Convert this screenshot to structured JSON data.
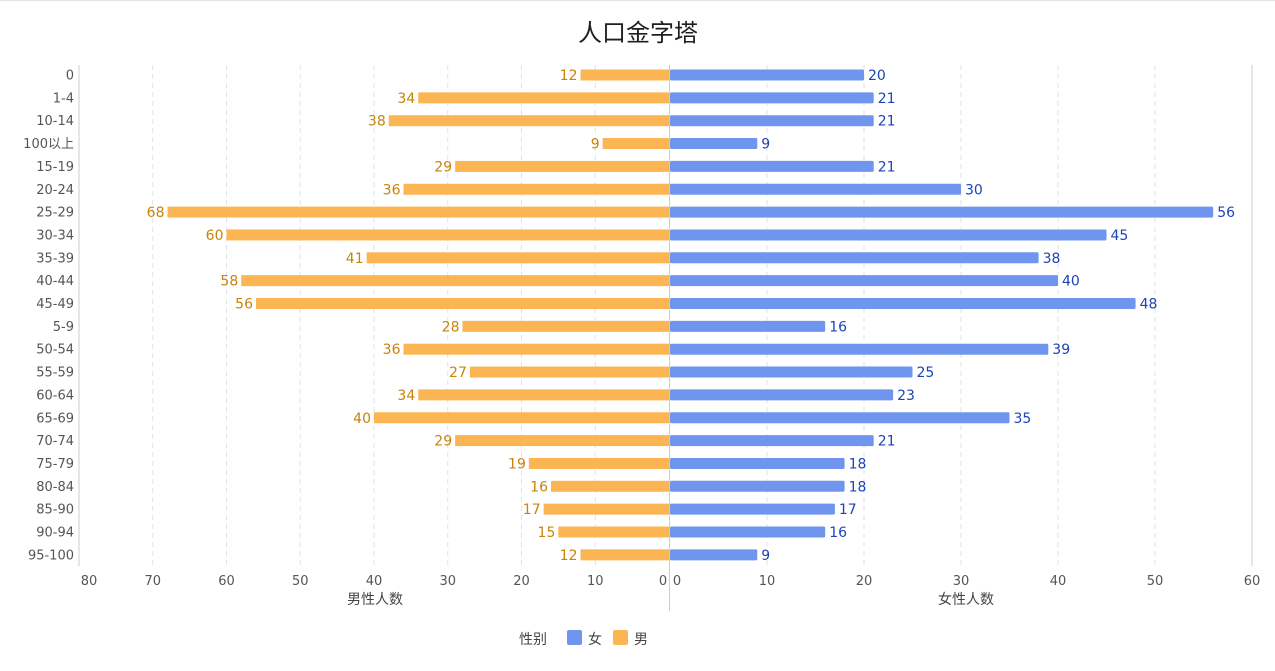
{
  "chart_data": {
    "type": "bar",
    "orientation": "horizontal",
    "layout": "population-pyramid",
    "title": "人口金字塔",
    "categories": [
      "0",
      "1-4",
      "10-14",
      "100以上",
      "15-19",
      "20-24",
      "25-29",
      "30-34",
      "35-39",
      "40-44",
      "45-49",
      "5-9",
      "50-54",
      "55-59",
      "60-64",
      "65-69",
      "70-74",
      "75-79",
      "80-84",
      "85-90",
      "90-94",
      "95-100"
    ],
    "series": [
      {
        "name": "男",
        "color": "#fbb553",
        "label_color": "#c8830a",
        "values": [
          12,
          34,
          38,
          9,
          29,
          36,
          68,
          60,
          41,
          58,
          56,
          28,
          36,
          27,
          34,
          40,
          29,
          19,
          16,
          17,
          15,
          12
        ]
      },
      {
        "name": "女",
        "color": "#6f95ee",
        "label_color": "#1d43b8",
        "values": [
          20,
          21,
          21,
          9,
          21,
          30,
          56,
          45,
          38,
          40,
          48,
          16,
          39,
          25,
          23,
          35,
          21,
          18,
          18,
          17,
          16,
          9
        ]
      }
    ],
    "left_axis": {
      "label": "男性人数",
      "range": [
        0,
        80
      ],
      "ticks": [
        80,
        70,
        60,
        50,
        40,
        30,
        20,
        10,
        0
      ]
    },
    "right_axis": {
      "label": "女性人数",
      "range": [
        0,
        60
      ],
      "ticks": [
        0,
        10,
        20,
        30,
        40,
        50,
        60
      ]
    },
    "legend": {
      "title": "性别",
      "items": [
        {
          "name": "女",
          "color": "#6f95ee"
        },
        {
          "name": "男",
          "color": "#fbb553"
        }
      ],
      "position": "bottom-center"
    },
    "grid": "vertical-dashed"
  }
}
